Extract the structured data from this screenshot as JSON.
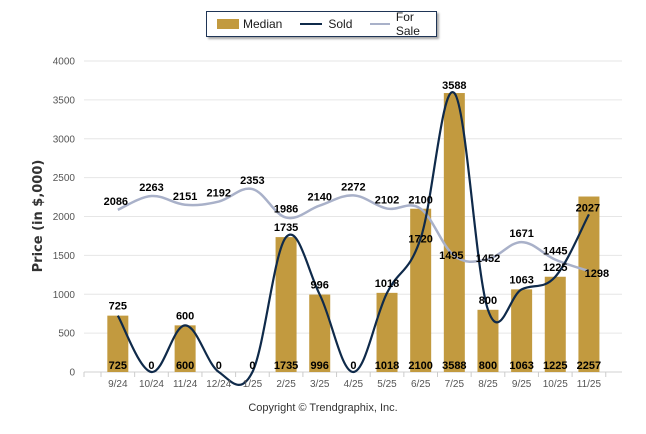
{
  "legend": {
    "median": "Median",
    "sold": "Sold",
    "for_sale": "For Sale"
  },
  "copyright": "Copyright © Trendgraphix, Inc.",
  "colors": {
    "median": "#c29a3f",
    "sold": "#0f2a4a",
    "for_sale": "#a9b1c9",
    "grid": "#e6e6e6"
  },
  "chart_data": {
    "type": "bar",
    "title": "",
    "xlabel": "",
    "ylabel": "Price (in $,000)",
    "ylim": [
      0,
      4000
    ],
    "yticks": [
      0,
      500,
      1000,
      1500,
      2000,
      2500,
      3000,
      3500,
      4000
    ],
    "grid": true,
    "legend_position": "top-center",
    "categories": [
      "9/24",
      "10/24",
      "11/24",
      "12/24",
      "1/25",
      "2/25",
      "3/25",
      "4/25",
      "5/25",
      "6/25",
      "7/25",
      "8/25",
      "9/25",
      "10/25",
      "11/25"
    ],
    "series": [
      {
        "name": "Median",
        "type": "bar",
        "values": [
          725,
          null,
          600,
          null,
          null,
          1735,
          996,
          null,
          1018,
          2100,
          3588,
          800,
          1063,
          1225,
          2257
        ]
      },
      {
        "name": "Sold",
        "type": "line",
        "values": [
          725,
          0,
          600,
          0,
          0,
          1735,
          996,
          0,
          1018,
          1720,
          3588,
          800,
          1063,
          1225,
          2027
        ]
      },
      {
        "name": "For Sale",
        "type": "line",
        "values": [
          2086,
          2263,
          2151,
          2192,
          2353,
          1986,
          2140,
          2272,
          2102,
          2100,
          1495,
          1452,
          1671,
          1445,
          1298
        ],
        "first_index": 0
      }
    ],
    "bar_base_labels": [
      "725",
      "0",
      "600",
      "0",
      "0",
      "1735",
      "996",
      "0",
      "1018",
      "2100",
      "3588",
      "800",
      "1063",
      "1225",
      "2257"
    ]
  }
}
